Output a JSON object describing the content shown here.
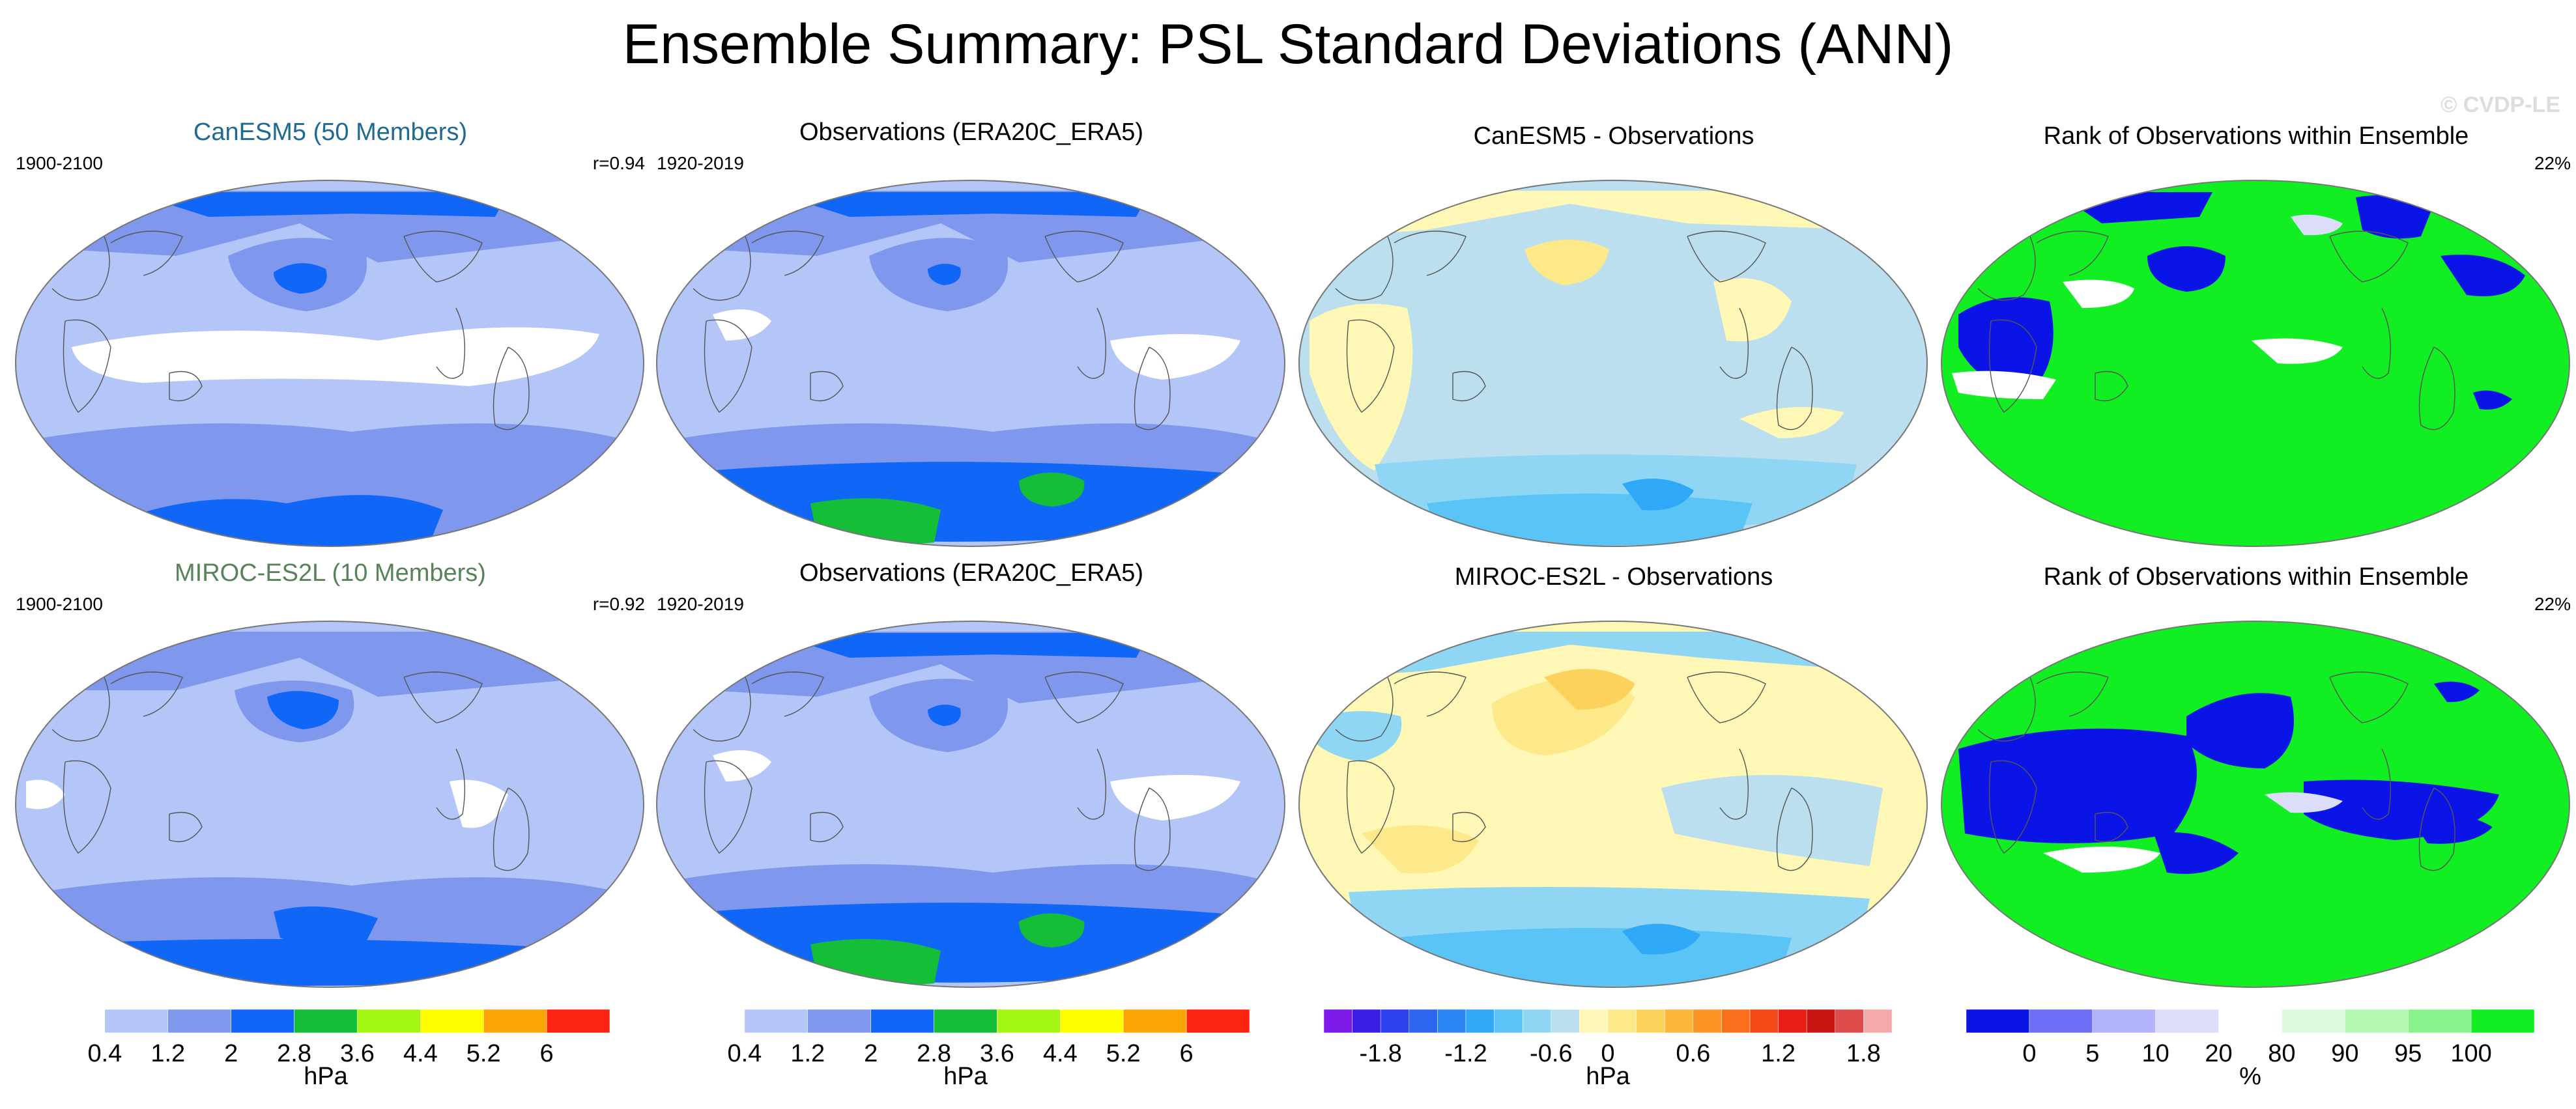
{
  "figure_title": "Ensemble Summary: PSL Standard Deviations (ANN)",
  "watermark": "© CVDP-LE",
  "colors": {
    "model_title_1": "#1f6a93",
    "model_title_2": "#58825a",
    "map_outline": "#777777",
    "coast": "#555555"
  },
  "panels": [
    {
      "title": "CanESM5 (50 Members)",
      "left_text": "1900-2100",
      "right_text": "r=0.94"
    },
    {
      "title": "Observations (ERA20C_ERA5)",
      "left_text": "1920-2019",
      "right_text": ""
    },
    {
      "title": "CanESM5 - Observations",
      "left_text": "",
      "right_text": ""
    },
    {
      "title": "Rank of Observations within Ensemble",
      "left_text": "",
      "right_text": "22%"
    },
    {
      "title": "MIROC-ES2L (10 Members)",
      "left_text": "1900-2100",
      "right_text": "r=0.92"
    },
    {
      "title": "Observations (ERA20C_ERA5)",
      "left_text": "1920-2019",
      "right_text": ""
    },
    {
      "title": "MIROC-ES2L - Observations",
      "left_text": "",
      "right_text": ""
    },
    {
      "title": "Rank of Observations within Ensemble",
      "left_text": "",
      "right_text": "22%"
    }
  ],
  "chart_data": [
    {
      "type": "heatmap",
      "title": "CanESM5 (50 Members)",
      "units": "hPa",
      "colorbar": "std",
      "period": "1900-2100",
      "pattern_correlation": 0.94
    },
    {
      "type": "heatmap",
      "title": "Observations (ERA20C_ERA5)",
      "units": "hPa",
      "colorbar": "std",
      "period": "1920-2019"
    },
    {
      "type": "heatmap",
      "title": "CanESM5 - Observations",
      "units": "hPa",
      "colorbar": "diff"
    },
    {
      "type": "heatmap",
      "title": "Rank of Observations within Ensemble",
      "units": "%",
      "colorbar": "rank",
      "summary": "22%"
    },
    {
      "type": "heatmap",
      "title": "MIROC-ES2L (10 Members)",
      "units": "hPa",
      "colorbar": "std",
      "period": "1900-2100",
      "pattern_correlation": 0.92
    },
    {
      "type": "heatmap",
      "title": "Observations (ERA20C_ERA5)",
      "units": "hPa",
      "colorbar": "std",
      "period": "1920-2019"
    },
    {
      "type": "heatmap",
      "title": "MIROC-ES2L - Observations",
      "units": "hPa",
      "colorbar": "diff"
    },
    {
      "type": "heatmap",
      "title": "Rank of Observations within Ensemble",
      "units": "%",
      "colorbar": "rank",
      "summary": "22%"
    }
  ],
  "colorbars": [
    {
      "id": "std",
      "units": "hPa",
      "colors": [
        "#ffffff",
        "#b4c5f7",
        "#7f98ee",
        "#0f66f7",
        "#14be37",
        "#a4f713",
        "#fdfd00",
        "#fda406",
        "#fc2410"
      ],
      "ticks": [
        "0.4",
        "1.2",
        "2",
        "2.8",
        "3.6",
        "4.4",
        "5.2",
        "6"
      ],
      "tick_after_box": [
        0,
        1,
        2,
        3,
        4,
        5,
        6,
        7
      ]
    },
    {
      "id": "std",
      "units": "hPa",
      "colors": [
        "#ffffff",
        "#b4c5f7",
        "#7f98ee",
        "#0f66f7",
        "#14be37",
        "#a4f713",
        "#fdfd00",
        "#fda406",
        "#fc2410"
      ],
      "ticks": [
        "0.4",
        "1.2",
        "2",
        "2.8",
        "3.6",
        "4.4",
        "5.2",
        "6"
      ],
      "tick_after_box": [
        0,
        1,
        2,
        3,
        4,
        5,
        6,
        7
      ]
    },
    {
      "id": "diff",
      "units": "hPa",
      "colors": [
        "#7e1ae8",
        "#3b1ee6",
        "#2d40f0",
        "#2d66f0",
        "#2d86f5",
        "#2ea8f7",
        "#5bc4f7",
        "#8fd6f5",
        "#bcdff0",
        "#fff7b5",
        "#fde98a",
        "#fdd25c",
        "#fcb63b",
        "#fd9526",
        "#fb6f1c",
        "#f54a17",
        "#e81d14",
        "#c81512",
        "#e04c4c",
        "#f7a8a8"
      ],
      "ticks": [
        "-1.8",
        "-1.2",
        "-0.6",
        "0",
        "0.6",
        "1.2",
        "1.8"
      ],
      "tick_after_box": [
        1,
        4,
        7,
        9,
        12,
        15,
        18
      ]
    },
    {
      "id": "rank",
      "units": "%",
      "colors": [
        "#0a14e6",
        "#6e6ef7",
        "#b3b3f9",
        "#dcdcfb",
        "#ffffff",
        "#dcfadc",
        "#b3f7b3",
        "#8af28a",
        "#11ee22"
      ],
      "ticks": [
        "0",
        "5",
        "10",
        "20",
        "80",
        "90",
        "95",
        "100"
      ],
      "tick_after_box": [
        0,
        1,
        2,
        3,
        4,
        5,
        6,
        7
      ]
    }
  ]
}
